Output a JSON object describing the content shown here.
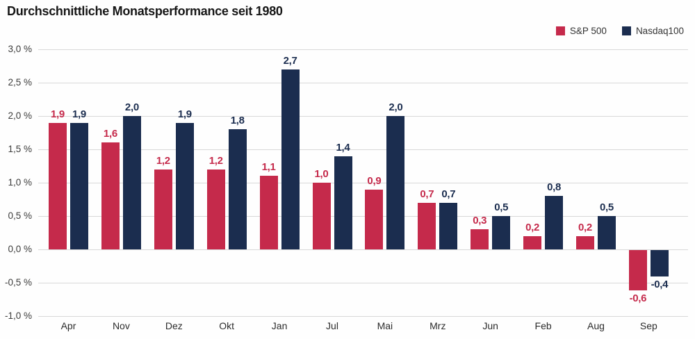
{
  "title": "Durchschnittliche Monatsperformance seit 1980",
  "legend": [
    {
      "label": "S&P 500",
      "color": "#c52a4b"
    },
    {
      "label": "Nasdaq100",
      "color": "#1b2d4f"
    }
  ],
  "colors": {
    "sp500": "#c52a4b",
    "nasdaq100": "#1b2d4f",
    "gridline": "#d8d8d8",
    "title_text": "#161616",
    "axis_text": "#3c3c3b"
  },
  "chart_data": {
    "type": "bar",
    "title": "Durchschnittliche Monatsperformance seit 1980",
    "categories": [
      "Apr",
      "Nov",
      "Dez",
      "Okt",
      "Jan",
      "Jul",
      "Mai",
      "Mrz",
      "Jun",
      "Feb",
      "Aug",
      "Sep"
    ],
    "series": [
      {
        "name": "S&P 500",
        "color": "#c52a4b",
        "values": [
          1.9,
          1.6,
          1.2,
          1.2,
          1.1,
          1.0,
          0.9,
          0.7,
          0.3,
          0.2,
          0.2,
          -0.6
        ],
        "labels": [
          "1,9",
          "1,6",
          "1,2",
          "1,2",
          "1,1",
          "1,0",
          "0,9",
          "0,7",
          "0,3",
          "0,2",
          "0,2",
          "-0,6"
        ]
      },
      {
        "name": "Nasdaq100",
        "color": "#1b2d4f",
        "values": [
          1.9,
          2.0,
          1.9,
          1.8,
          2.7,
          1.4,
          2.0,
          0.7,
          0.5,
          0.8,
          0.5,
          -0.4
        ],
        "labels": [
          "1,9",
          "2,0",
          "1,9",
          "1,8",
          "2,7",
          "1,4",
          "2,0",
          "0,7",
          "0,5",
          "0,8",
          "0,5",
          "-0,4"
        ]
      }
    ],
    "xlabel": "",
    "ylabel": "",
    "ylim": [
      -1.0,
      3.0
    ],
    "ytick_step": 0.5,
    "yticks": [
      {
        "value": 3.0,
        "label": "3,0 %"
      },
      {
        "value": 2.5,
        "label": "2,5 %"
      },
      {
        "value": 2.0,
        "label": "2,0 %"
      },
      {
        "value": 1.5,
        "label": "1,5 %"
      },
      {
        "value": 1.0,
        "label": "1,0 %"
      },
      {
        "value": 0.5,
        "label": "0,5 %"
      },
      {
        "value": 0.0,
        "label": "0,0 %"
      },
      {
        "value": -0.5,
        "label": "-0,5 %"
      },
      {
        "value": -1.0,
        "label": "-1,0 %"
      }
    ],
    "grid": true,
    "legend_position": "top-right",
    "value_labels": "on-bars",
    "decimal_separator": ","
  }
}
